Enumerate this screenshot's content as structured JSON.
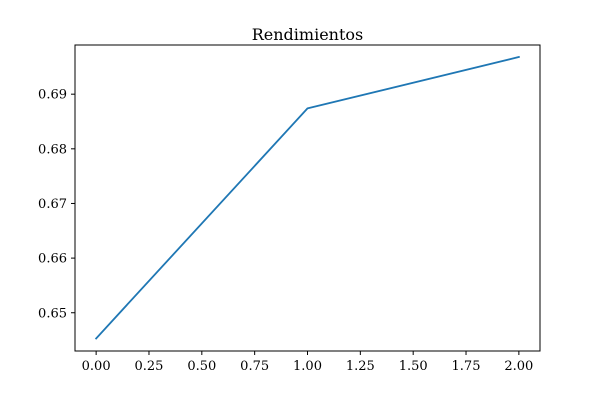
{
  "chart_data": {
    "type": "line",
    "title": "Rendimientos",
    "xlabel": "",
    "ylabel": "",
    "x": [
      0,
      1,
      2
    ],
    "series": [
      {
        "values": [
          0.6453,
          0.6874,
          0.6968
        ],
        "color": "#1f77b4"
      }
    ],
    "xlim": [
      -0.1,
      2.1
    ],
    "ylim": [
      0.643,
      0.699
    ],
    "xticks": [
      0.0,
      0.25,
      0.5,
      0.75,
      1.0,
      1.25,
      1.5,
      1.75,
      2.0
    ],
    "xtick_labels": [
      "0.00",
      "0.25",
      "0.50",
      "0.75",
      "1.00",
      "1.25",
      "1.50",
      "1.75",
      "2.00"
    ],
    "yticks": [
      0.65,
      0.66,
      0.67,
      0.68,
      0.69
    ],
    "ytick_labels": [
      "0.65",
      "0.66",
      "0.67",
      "0.68",
      "0.69"
    ],
    "grid": false,
    "legend": "none"
  }
}
